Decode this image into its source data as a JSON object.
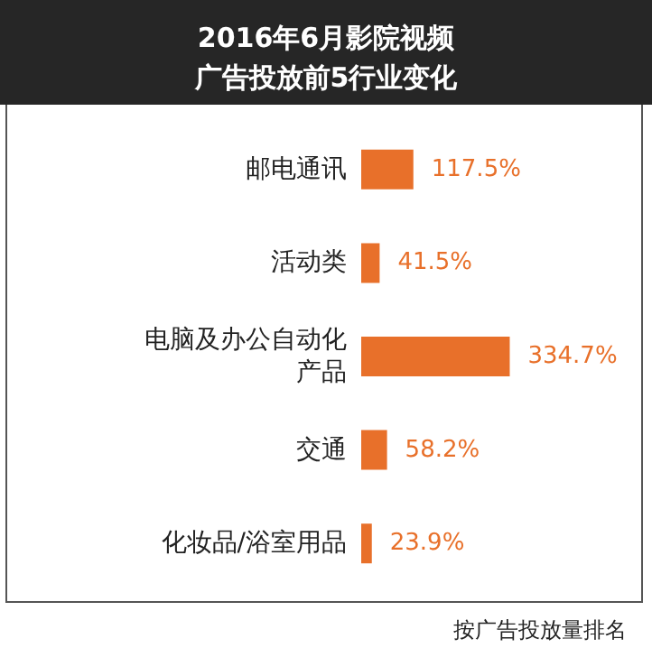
{
  "chart_data": {
    "type": "bar",
    "orientation": "horizontal",
    "title": "2016年6月影院视频广告投放前5行业变化",
    "categories": [
      "邮电通讯",
      "活动类",
      "电脑及办公自动化产品",
      "交通",
      "化妆品/浴室用品"
    ],
    "values": [
      117.5,
      41.5,
      334.7,
      58.2,
      23.9
    ],
    "value_labels": [
      "117.5%",
      "41.5%",
      "334.7%",
      "58.2%",
      "23.9%"
    ],
    "color": "#e8702a",
    "annotations": [
      "按广告投放量排名"
    ]
  }
}
